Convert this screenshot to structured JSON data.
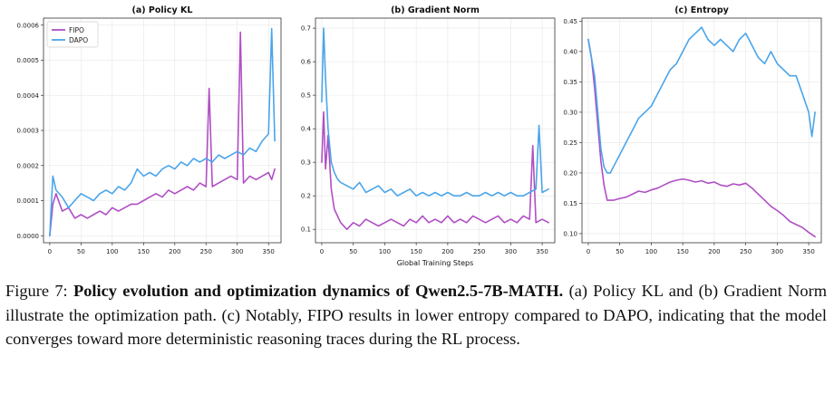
{
  "colors": {
    "fipo": "#b04fc4",
    "dapo": "#4aa5ea"
  },
  "xlabel": "Global Training Steps",
  "caption": {
    "prefix": "Figure 7: ",
    "bold": "Policy evolution and optimization dynamics of Qwen2.5-7B-MATH.",
    "rest": " (a) Policy KL and (b) Gradient Norm illustrate the optimization path. (c) Notably, FIPO results in lower entropy compared to DAPO, indicating that the model converges toward more deterministic reasoning traces during the RL process."
  },
  "chart_data": [
    {
      "type": "line",
      "title": "(a) Policy KL",
      "xlim": [
        -10,
        370
      ],
      "ylim": [
        -2e-05,
        0.00062
      ],
      "xticks": [
        0,
        50,
        100,
        150,
        200,
        250,
        300,
        350
      ],
      "yticks": [
        "0.0000",
        "0.0001",
        "0.0002",
        "0.0003",
        "0.0004",
        "0.0005",
        "0.0006"
      ],
      "ytick_values": [
        0,
        0.0001,
        0.0002,
        0.0003,
        0.0004,
        0.0005,
        0.0006
      ],
      "grid": true,
      "legend": "top-left",
      "series": [
        {
          "name": "FIPO",
          "x": [
            0,
            5,
            10,
            20,
            30,
            40,
            50,
            60,
            70,
            80,
            90,
            100,
            110,
            120,
            130,
            140,
            150,
            160,
            170,
            180,
            190,
            200,
            210,
            220,
            230,
            240,
            250,
            255,
            260,
            270,
            280,
            290,
            300,
            305,
            310,
            320,
            330,
            340,
            350,
            355,
            360
          ],
          "y": [
            0.0,
            9e-05,
            0.00012,
            7e-05,
            8e-05,
            5e-05,
            6e-05,
            5e-05,
            6e-05,
            7e-05,
            6e-05,
            8e-05,
            7e-05,
            8e-05,
            9e-05,
            9e-05,
            0.0001,
            0.00011,
            0.00012,
            0.00011,
            0.00013,
            0.00012,
            0.00013,
            0.00014,
            0.00013,
            0.00015,
            0.00014,
            0.00042,
            0.00014,
            0.00015,
            0.00016,
            0.00017,
            0.00016,
            0.00058,
            0.00015,
            0.00017,
            0.00016,
            0.00017,
            0.00018,
            0.00016,
            0.00019
          ]
        },
        {
          "name": "DAPO",
          "x": [
            0,
            5,
            10,
            20,
            30,
            40,
            50,
            60,
            70,
            80,
            90,
            100,
            110,
            120,
            130,
            140,
            150,
            160,
            170,
            180,
            190,
            200,
            210,
            220,
            230,
            240,
            250,
            260,
            270,
            280,
            290,
            300,
            310,
            320,
            330,
            340,
            350,
            355,
            360
          ],
          "y": [
            0.0,
            0.00017,
            0.00013,
            0.00011,
            8e-05,
            0.0001,
            0.00012,
            0.00011,
            0.0001,
            0.00012,
            0.00013,
            0.00012,
            0.00014,
            0.00013,
            0.00015,
            0.00019,
            0.00017,
            0.00018,
            0.00017,
            0.00019,
            0.0002,
            0.00019,
            0.00021,
            0.0002,
            0.00022,
            0.00021,
            0.00022,
            0.00021,
            0.00023,
            0.00022,
            0.00023,
            0.00024,
            0.00023,
            0.00025,
            0.00024,
            0.00027,
            0.00029,
            0.00059,
            0.00027
          ]
        }
      ]
    },
    {
      "type": "line",
      "title": "(b) Gradient Norm",
      "xlim": [
        -10,
        370
      ],
      "ylim": [
        0.06,
        0.73
      ],
      "xticks": [
        0,
        50,
        100,
        150,
        200,
        250,
        300,
        350
      ],
      "yticks": [
        "0.1",
        "0.2",
        "0.3",
        "0.4",
        "0.5",
        "0.6",
        "0.7"
      ],
      "ytick_values": [
        0.1,
        0.2,
        0.3,
        0.4,
        0.5,
        0.6,
        0.7
      ],
      "grid": true,
      "series": [
        {
          "name": "FIPO",
          "x": [
            0,
            3,
            6,
            10,
            15,
            20,
            25,
            30,
            40,
            50,
            60,
            70,
            80,
            90,
            100,
            110,
            120,
            130,
            140,
            150,
            160,
            170,
            180,
            190,
            200,
            210,
            220,
            230,
            240,
            250,
            260,
            270,
            280,
            290,
            300,
            310,
            320,
            330,
            335,
            340,
            350,
            360
          ],
          "y": [
            0.3,
            0.45,
            0.28,
            0.38,
            0.22,
            0.16,
            0.14,
            0.12,
            0.1,
            0.12,
            0.11,
            0.13,
            0.12,
            0.11,
            0.12,
            0.13,
            0.12,
            0.11,
            0.13,
            0.12,
            0.14,
            0.12,
            0.13,
            0.12,
            0.14,
            0.12,
            0.13,
            0.12,
            0.14,
            0.13,
            0.12,
            0.13,
            0.14,
            0.12,
            0.13,
            0.12,
            0.14,
            0.13,
            0.35,
            0.12,
            0.13,
            0.12
          ]
        },
        {
          "name": "DAPO",
          "x": [
            0,
            3,
            6,
            10,
            15,
            20,
            25,
            30,
            40,
            50,
            60,
            70,
            80,
            90,
            100,
            110,
            120,
            130,
            140,
            150,
            160,
            170,
            180,
            190,
            200,
            210,
            220,
            230,
            240,
            250,
            260,
            270,
            280,
            290,
            300,
            310,
            320,
            330,
            340,
            345,
            350,
            360
          ],
          "y": [
            0.48,
            0.7,
            0.55,
            0.4,
            0.3,
            0.27,
            0.25,
            0.24,
            0.23,
            0.22,
            0.24,
            0.21,
            0.22,
            0.23,
            0.21,
            0.22,
            0.2,
            0.21,
            0.22,
            0.2,
            0.21,
            0.2,
            0.21,
            0.2,
            0.21,
            0.2,
            0.2,
            0.21,
            0.2,
            0.2,
            0.21,
            0.2,
            0.21,
            0.2,
            0.21,
            0.2,
            0.2,
            0.21,
            0.22,
            0.41,
            0.21,
            0.22
          ]
        }
      ]
    },
    {
      "type": "line",
      "title": "(c) Entropy",
      "xlim": [
        -10,
        370
      ],
      "ylim": [
        0.085,
        0.455
      ],
      "xticks": [
        0,
        50,
        100,
        150,
        200,
        250,
        300,
        350
      ],
      "yticks": [
        "0.10",
        "0.15",
        "0.20",
        "0.25",
        "0.30",
        "0.35",
        "0.40",
        "0.45"
      ],
      "ytick_values": [
        0.1,
        0.15,
        0.2,
        0.25,
        0.3,
        0.35,
        0.4,
        0.45
      ],
      "grid": true,
      "series": [
        {
          "name": "FIPO",
          "x": [
            0,
            5,
            10,
            15,
            20,
            25,
            30,
            40,
            50,
            60,
            70,
            80,
            90,
            100,
            110,
            120,
            130,
            140,
            150,
            160,
            170,
            180,
            190,
            200,
            210,
            220,
            230,
            240,
            250,
            260,
            270,
            280,
            290,
            300,
            310,
            320,
            330,
            340,
            350,
            360
          ],
          "y": [
            0.42,
            0.39,
            0.34,
            0.28,
            0.22,
            0.18,
            0.155,
            0.155,
            0.158,
            0.16,
            0.165,
            0.17,
            0.168,
            0.172,
            0.175,
            0.18,
            0.185,
            0.188,
            0.19,
            0.188,
            0.185,
            0.187,
            0.183,
            0.185,
            0.18,
            0.178,
            0.182,
            0.18,
            0.183,
            0.175,
            0.165,
            0.155,
            0.145,
            0.138,
            0.13,
            0.12,
            0.115,
            0.11,
            0.102,
            0.095
          ]
        },
        {
          "name": "DAPO",
          "x": [
            0,
            5,
            10,
            15,
            20,
            25,
            30,
            35,
            40,
            50,
            60,
            70,
            80,
            90,
            100,
            110,
            120,
            130,
            140,
            150,
            160,
            170,
            180,
            190,
            200,
            210,
            220,
            230,
            240,
            250,
            260,
            270,
            280,
            290,
            300,
            310,
            320,
            330,
            340,
            350,
            355,
            360
          ],
          "y": [
            0.42,
            0.39,
            0.36,
            0.3,
            0.24,
            0.21,
            0.2,
            0.2,
            0.21,
            0.23,
            0.25,
            0.27,
            0.29,
            0.3,
            0.31,
            0.33,
            0.35,
            0.37,
            0.38,
            0.4,
            0.42,
            0.43,
            0.44,
            0.42,
            0.41,
            0.42,
            0.41,
            0.4,
            0.42,
            0.43,
            0.41,
            0.39,
            0.38,
            0.4,
            0.38,
            0.37,
            0.36,
            0.36,
            0.33,
            0.3,
            0.26,
            0.3
          ]
        }
      ]
    }
  ]
}
